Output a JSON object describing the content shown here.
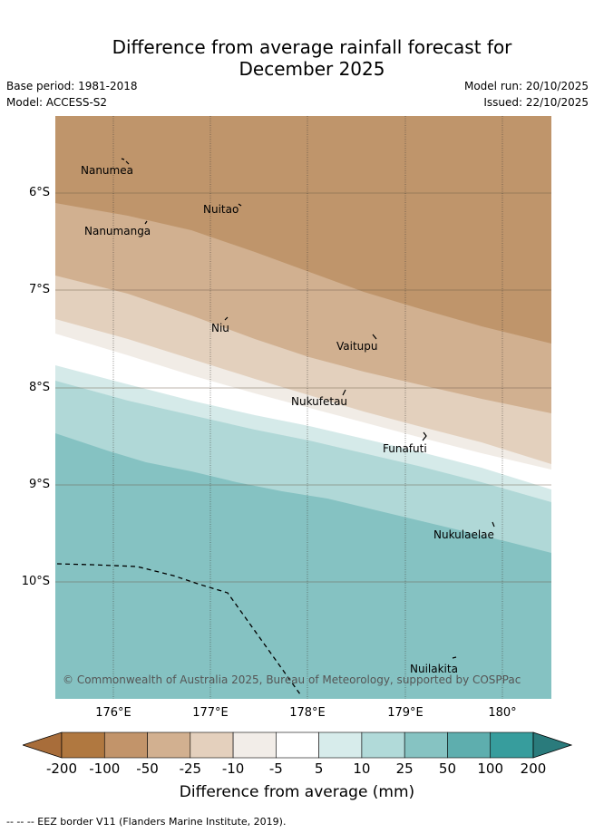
{
  "header": {
    "title_line1": "Difference from average rainfall forecast for",
    "title_line2": "December 2025",
    "base_period": "Base period: 1981-2018",
    "model": "Model: ACCESS-S2",
    "model_run": "Model run: 20/10/2025",
    "issued": "Issued: 22/10/2025"
  },
  "map": {
    "lat_labels": [
      "6°S",
      "7°S",
      "8°S",
      "9°S",
      "10°S"
    ],
    "lon_labels": [
      "176°E",
      "177°E",
      "178°E",
      "179°E",
      "180°"
    ],
    "islands": [
      {
        "name": "Nanumea"
      },
      {
        "name": "Nuitao"
      },
      {
        "name": "Nanumanga"
      },
      {
        "name": "Niu"
      },
      {
        "name": "Vaitupu"
      },
      {
        "name": "Nukufetau"
      },
      {
        "name": "Funafuti"
      },
      {
        "name": "Nukulaelae"
      },
      {
        "name": "Nuilakita"
      }
    ],
    "copyright": "© Commonwealth of Australia 2025, Bureau of Meteorology, supported by COSPPac"
  },
  "colorbar": {
    "label": "Difference from average (mm)",
    "ticks": [
      "-200",
      "-100",
      "-50",
      "-25",
      "-10",
      "-5",
      "5",
      "10",
      "25",
      "50",
      "100",
      "200"
    ],
    "colors": [
      "#a86d3a",
      "#b07840",
      "#c2946a",
      "#d2b090",
      "#e4d0bd",
      "#f2ede8",
      "#ffffff",
      "#d7eceb",
      "#b1dad9",
      "#86c3c2",
      "#5eaeae",
      "#379d9d",
      "#2a7b7c"
    ]
  },
  "footer": {
    "eez_note": "--  --  -- EEZ border V11 (Flanders Marine Institute, 2019)."
  }
}
